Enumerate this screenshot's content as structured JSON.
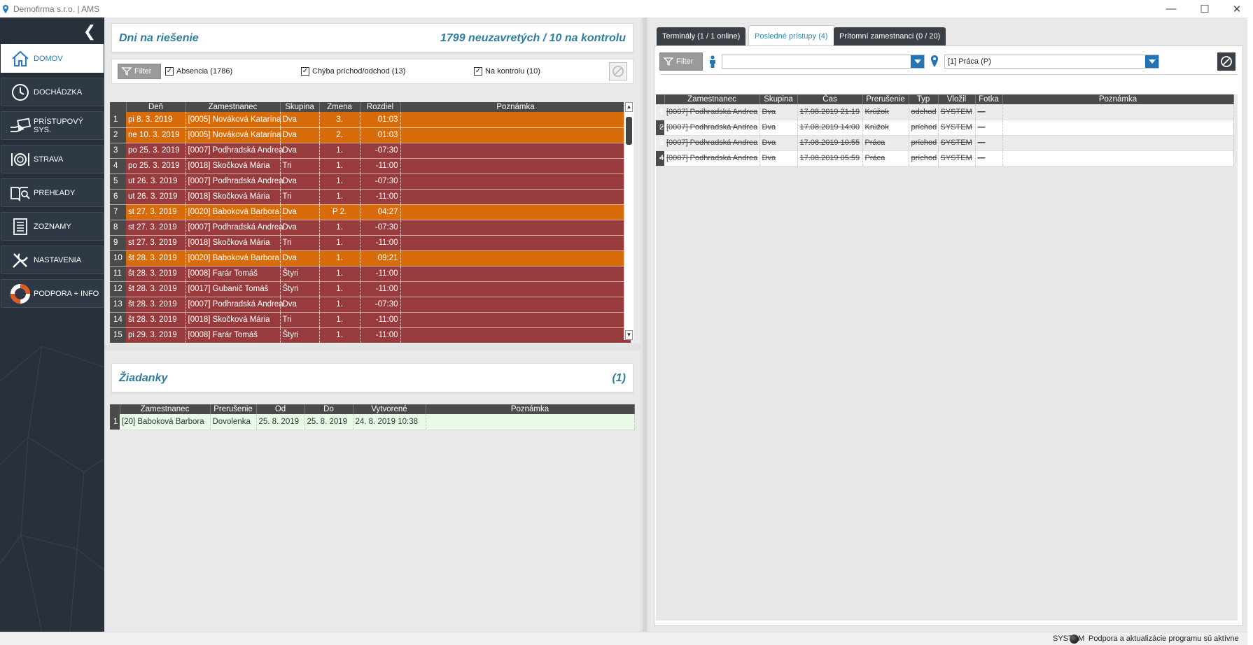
{
  "window": {
    "title": "Demofirma s.r.o. | AMS",
    "controls": {
      "minimize": "—",
      "maximize": "☐",
      "close": "✕"
    }
  },
  "sidebar": {
    "items": [
      {
        "label": "DOMOV",
        "icon": "home-icon",
        "active": true
      },
      {
        "label": "DOCHÁDZKA",
        "icon": "clock-icon"
      },
      {
        "label": "PRÍSTUPOVÝ SYS.",
        "icon": "card-hand-icon"
      },
      {
        "label": "STRAVA",
        "icon": "plate-icon"
      },
      {
        "label": "PREHĽADY",
        "icon": "book-search-icon"
      },
      {
        "label": "ZOZNAMY",
        "icon": "list-icon"
      },
      {
        "label": "NASTAVENIA",
        "icon": "tools-icon"
      },
      {
        "label": "PODPORA + INFO",
        "icon": "lifebuoy-icon"
      }
    ]
  },
  "days": {
    "title": "Dni na riešenie",
    "count": "1799 neuzavretých / 10 na kontrolu",
    "filter_label": "Filter",
    "checkboxes": [
      {
        "label": "Absencia (1786)",
        "checked": true
      },
      {
        "label": "Chýba príchod/odchod (13)",
        "checked": true
      },
      {
        "label": "Na kontrolu (10)",
        "checked": true
      }
    ],
    "columns": [
      "Deň",
      "Zamestnanec",
      "Skupina",
      "Zmena",
      "Rozdiel",
      "Poznámka"
    ],
    "rows": [
      {
        "n": "1",
        "day": "pi 8. 3. 2019",
        "emp": "[0005] Nováková Katarína",
        "grp": "Dva",
        "shift": "3.",
        "diff": "01:03",
        "note": "",
        "color": "orange"
      },
      {
        "n": "2",
        "day": "ne 10. 3. 2019",
        "emp": "[0005] Nováková Katarína",
        "grp": "Dva",
        "shift": "2.",
        "diff": "01:03",
        "note": "",
        "color": "orange"
      },
      {
        "n": "3",
        "day": "po 25. 3. 2019",
        "emp": "[0007] Podhradská Andrea",
        "grp": "Dva",
        "shift": "1.",
        "diff": "-07:30",
        "note": "",
        "color": "red"
      },
      {
        "n": "4",
        "day": "po 25. 3. 2019",
        "emp": "[0018] Skočková Mária",
        "grp": "Tri",
        "shift": "1.",
        "diff": "-11:00",
        "note": "",
        "color": "red"
      },
      {
        "n": "5",
        "day": "ut 26. 3. 2019",
        "emp": "[0007] Podhradská Andrea",
        "grp": "Dva",
        "shift": "1.",
        "diff": "-07:30",
        "note": "",
        "color": "red"
      },
      {
        "n": "6",
        "day": "ut 26. 3. 2019",
        "emp": "[0018] Skočková Mária",
        "grp": "Tri",
        "shift": "1.",
        "diff": "-11:00",
        "note": "",
        "color": "red"
      },
      {
        "n": "7",
        "day": "st 27. 3. 2019",
        "emp": "[0020] Baboková Barbora",
        "grp": "Dva",
        "shift": "P 2.",
        "diff": "04:27",
        "note": "",
        "color": "orange"
      },
      {
        "n": "8",
        "day": "st 27. 3. 2019",
        "emp": "[0007] Podhradská Andrea",
        "grp": "Dva",
        "shift": "1.",
        "diff": "-07:30",
        "note": "",
        "color": "red"
      },
      {
        "n": "9",
        "day": "st 27. 3. 2019",
        "emp": "[0018] Skočková Mária",
        "grp": "Tri",
        "shift": "1.",
        "diff": "-11:00",
        "note": "",
        "color": "red"
      },
      {
        "n": "10",
        "day": "št 28. 3. 2019",
        "emp": "[0020] Baboková Barbora",
        "grp": "Dva",
        "shift": "1.",
        "diff": "09:21",
        "note": "",
        "color": "orange"
      },
      {
        "n": "11",
        "day": "št 28. 3. 2019",
        "emp": "[0008] Farár Tomáš",
        "grp": "Štyri",
        "shift": "1.",
        "diff": "-11:00",
        "note": "",
        "color": "red"
      },
      {
        "n": "12",
        "day": "št 28. 3. 2019",
        "emp": "[0017] Gubanič Tomáš",
        "grp": "Štyri",
        "shift": "1.",
        "diff": "-11:00",
        "note": "",
        "color": "red"
      },
      {
        "n": "13",
        "day": "št 28. 3. 2019",
        "emp": "[0007] Podhradská Andrea",
        "grp": "Dva",
        "shift": "1.",
        "diff": "-07:30",
        "note": "",
        "color": "red"
      },
      {
        "n": "14",
        "day": "št 28. 3. 2019",
        "emp": "[0018] Skočková Mária",
        "grp": "Tri",
        "shift": "1.",
        "diff": "-11:00",
        "note": "",
        "color": "red"
      },
      {
        "n": "15",
        "day": "pi 29. 3. 2019",
        "emp": "[0008] Farár Tomáš",
        "grp": "Štyri",
        "shift": "1.",
        "diff": "-11:00",
        "note": "",
        "color": "red"
      }
    ]
  },
  "requests": {
    "title": "Žiadanky",
    "count": "(1)",
    "columns": [
      "Zamestnanec",
      "Prerušenie",
      "Od",
      "Do",
      "Vytvorené",
      "Poznámka"
    ],
    "rows": [
      {
        "n": "1",
        "emp": "[20] Baboková Barbora",
        "type": "Dovolenka",
        "from": "25. 8. 2019",
        "to": "25. 8. 2019",
        "created": "24. 8. 2019  10:38",
        "note": ""
      }
    ]
  },
  "right": {
    "tabs": [
      {
        "label": "Terminály (1 / 1 online)",
        "active": false
      },
      {
        "label": "Posledné prístupy (4)",
        "active": true
      },
      {
        "label": "Prítomní zamestnanci (0 / 20)",
        "active": false
      }
    ],
    "filter_label": "Filter",
    "person_value": "",
    "location_value": "[1] Práca (P)",
    "columns": [
      "Zamestnanec",
      "Skupina",
      "Čas",
      "Prerušenie",
      "Typ",
      "Vložil",
      "Fotka",
      "Poznámka"
    ],
    "rows": [
      {
        "n": "1",
        "emp": "[0007] Podhradská Andrea",
        "grp": "Dva",
        "time": "17.08.2019 21:19",
        "brk": "Krúžok",
        "type": "odchod",
        "by": "SYSTEM",
        "photo": "—",
        "note": ""
      },
      {
        "n": "2",
        "emp": "[0007] Podhradská Andrea",
        "grp": "Dva",
        "time": "17.08.2019 14:00",
        "brk": "Krúžok",
        "type": "príchod",
        "by": "SYSTEM",
        "photo": "—",
        "note": ""
      },
      {
        "n": "3",
        "emp": "[0007] Podhradská Andrea",
        "grp": "Dva",
        "time": "17.08.2019 10:55",
        "brk": "Práca",
        "type": "príchod",
        "by": "SYSTEM",
        "photo": "—",
        "note": ""
      },
      {
        "n": "4",
        "emp": "[0007] Podhradská Andrea",
        "grp": "Dva",
        "time": "17.08.2019 05:59",
        "brk": "Práca",
        "type": "príchod",
        "by": "SYSTEM",
        "photo": "—",
        "note": ""
      }
    ]
  },
  "status": {
    "user": "SYSTEM",
    "message": "Podpora a aktualizácie programu sú aktívne"
  },
  "colors": {
    "sidebar_bg": "#27303b",
    "row_red": "#983b3c",
    "row_orange": "#d86c0a",
    "accent": "#2e7d9e"
  }
}
